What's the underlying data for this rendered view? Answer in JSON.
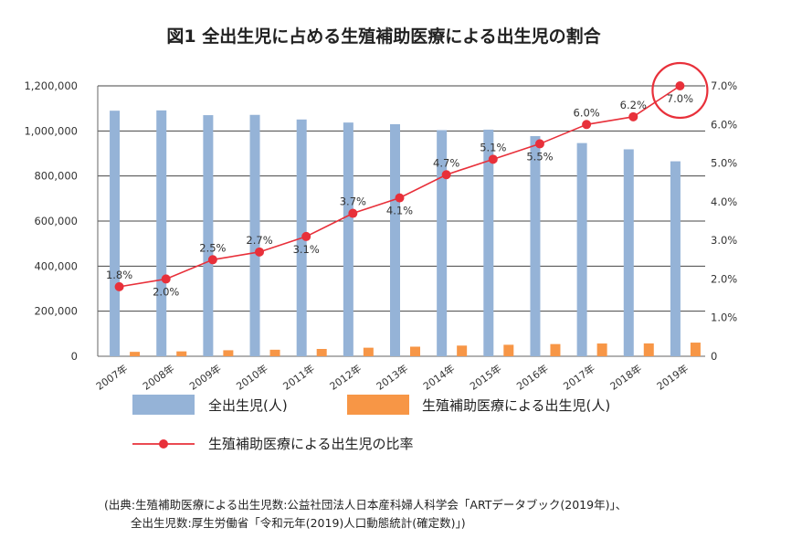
{
  "chart_data": {
    "type": "bar+line",
    "title": "図1 全出生児に占める生殖補助医療による出生児の割合",
    "categories": [
      "2007年",
      "2008年",
      "2009年",
      "2010年",
      "2011年",
      "2012年",
      "2013年",
      "2014年",
      "2015年",
      "2016年",
      "2017年",
      "2018年",
      "2019年"
    ],
    "series": [
      {
        "name": "全出生児(人)",
        "type": "bar",
        "axis": "left",
        "color": "#95b3d7",
        "values": [
          1089818,
          1091156,
          1070035,
          1071304,
          1050806,
          1037231,
          1029816,
          1003539,
          1005677,
          976978,
          946146,
          918400,
          865239
        ]
      },
      {
        "name": "生殖補助医療による出生児(人)",
        "type": "bar",
        "axis": "left",
        "color": "#f79646",
        "values": [
          19595,
          21704,
          26680,
          28945,
          32426,
          37953,
          42554,
          47322,
          51001,
          54110,
          56617,
          56979,
          60598
        ]
      },
      {
        "name": "生殖補助医療による出生児の比率",
        "type": "line",
        "axis": "right",
        "color": "#e8303a",
        "values": [
          1.8,
          2.0,
          2.5,
          2.7,
          3.1,
          3.7,
          4.1,
          4.7,
          5.1,
          5.5,
          6.0,
          6.2,
          7.0
        ],
        "labels": [
          "1.8%",
          "2.0%",
          "2.5%",
          "2.7%",
          "3.1%",
          "3.7%",
          "4.1%",
          "4.7%",
          "5.1%",
          "5.5%",
          "6.0%",
          "6.2%",
          "7.0%"
        ]
      }
    ],
    "y_left": {
      "ylim": [
        0,
        1200000
      ],
      "ticks": [
        "0",
        "200,000",
        "400,000",
        "600,000",
        "800,000",
        "1,000,000",
        "1,200,000"
      ]
    },
    "y_right": {
      "ylim": [
        0,
        7
      ],
      "ticks": [
        "0",
        "1.0%",
        "2.0%",
        "3.0%",
        "4.0%",
        "5.0%",
        "6.0%",
        "7.0%"
      ]
    },
    "grid": true,
    "legend": "bottom",
    "highlight": "2019年"
  },
  "source": {
    "line1": "(出典:生殖補助医療による出生児数:公益社団法人日本産科婦人科学会「ARTデータブック(2019年)」、",
    "line2": "全出生児数:厚生労働省「令和元年(2019)人口動態統計(確定数)」)"
  }
}
